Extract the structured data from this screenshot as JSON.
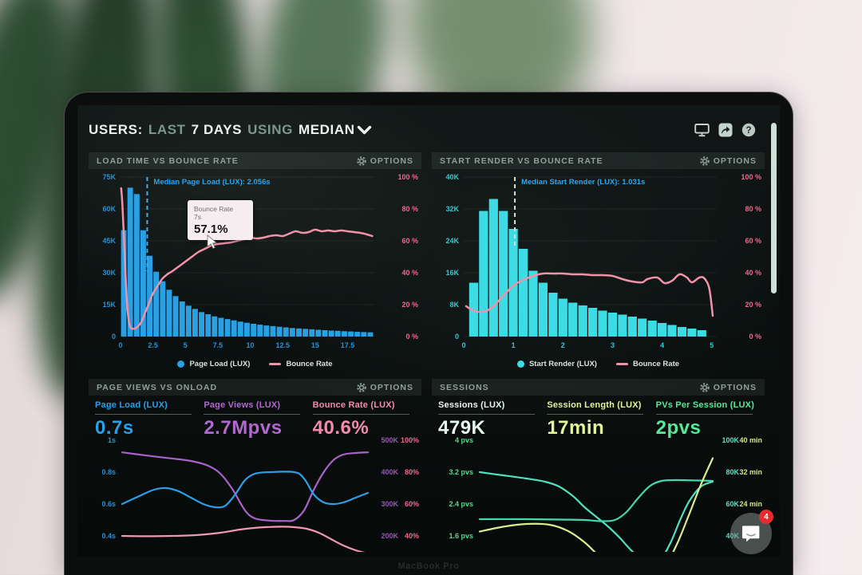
{
  "device": {
    "brand_label": "MacBook Pro"
  },
  "header": {
    "seg_users": "USERS:",
    "seg_last": "LAST",
    "seg_days": "7 DAYS",
    "seg_using": "USING",
    "seg_median": "MEDIAN"
  },
  "chat_widget": {
    "badge": "4"
  },
  "panels": {
    "load_time": {
      "title": "LOAD TIME VS BOUNCE RATE",
      "options_label": "OPTIONS",
      "tooltip": {
        "line1": "Bounce Rate",
        "line2": "7s",
        "value": "57.1%"
      },
      "legend": [
        {
          "label": "Page Load (LUX)",
          "color": "#29a0e4",
          "marker": "dot"
        },
        {
          "label": "Bounce Rate",
          "color": "#f093a9",
          "marker": "line"
        }
      ]
    },
    "start_render": {
      "title": "START RENDER VS BOUNCE RATE",
      "options_label": "OPTIONS",
      "legend": [
        {
          "label": "Start Render (LUX)",
          "color": "#3ddbe4",
          "marker": "dot"
        },
        {
          "label": "Bounce Rate",
          "color": "#f093a9",
          "marker": "line"
        }
      ]
    },
    "page_views": {
      "title": "PAGE VIEWS VS ONLOAD",
      "options_label": "OPTIONS",
      "metrics": [
        {
          "label": "Page Load (LUX)",
          "value": "0.7s",
          "color": "#2b9fe8"
        },
        {
          "label": "Page Views (LUX)",
          "value": "2.7Mpvs",
          "color": "#b168cf"
        },
        {
          "label": "Bounce Rate (LUX)",
          "value": "40.6%",
          "color": "#f48bac"
        }
      ]
    },
    "sessions": {
      "title": "SESSIONS",
      "options_label": "OPTIONS",
      "metrics": [
        {
          "label": "Sessions (LUX)",
          "value": "479K",
          "color": "#e8f7ee"
        },
        {
          "label": "Session Length (LUX)",
          "value": "17min",
          "color": "#e4f59c"
        },
        {
          "label": "PVs Per Session (LUX)",
          "value": "2pvs",
          "color": "#58e89a"
        }
      ]
    }
  },
  "chart_data": [
    {
      "id": "load_time_hist",
      "type": "bar",
      "title": "LOAD TIME VS BOUNCE RATE",
      "x": {
        "min": 0,
        "max": 19.5,
        "ticks": [
          0,
          2.5,
          5,
          7.5,
          10,
          12.5,
          15,
          17.5
        ],
        "unit": "s"
      },
      "y_left": {
        "max": 75000,
        "ticks": [
          "75K",
          "60K",
          "45K",
          "30K",
          "15K",
          "0"
        ]
      },
      "y_right": {
        "max": 100,
        "ticks": [
          "100 %",
          "80 %",
          "60 %",
          "40 %",
          "20 %",
          "0 %"
        ]
      },
      "colors": {
        "left": "#2492d8",
        "right": "#f2688c"
      },
      "bar_color": "#29a0e4",
      "bar_start": 0,
      "bar_width": 0.5,
      "bars_thousands": [
        50,
        70,
        67,
        50,
        38,
        30.5,
        26,
        22,
        19,
        16.5,
        14.5,
        13,
        11.5,
        10.5,
        9.5,
        8.8,
        8.2,
        7.6,
        7,
        6.5,
        6,
        5.6,
        5.2,
        4.9,
        4.6,
        4.3,
        4,
        3.8,
        3.6,
        3.4,
        3.2,
        3,
        2.8,
        2.7,
        2.5,
        2.4,
        2.2,
        2.1,
        2
      ],
      "median": {
        "x": 2.056,
        "label": "Median Page Load (LUX): 2.056s",
        "line_color": "#4fa8e0",
        "label_color": "#2ea3e8",
        "drop": 128
      },
      "line": {
        "name": "Bounce Rate",
        "color": "#f093a9",
        "points": [
          [
            0.05,
            93
          ],
          [
            0.15,
            82
          ],
          [
            0.3,
            55
          ],
          [
            0.45,
            28
          ],
          [
            0.6,
            12
          ],
          [
            0.75,
            6
          ],
          [
            0.9,
            5
          ],
          [
            1.1,
            5
          ],
          [
            1.3,
            6
          ],
          [
            1.6,
            9
          ],
          [
            1.9,
            15
          ],
          [
            2.2,
            21
          ],
          [
            2.5,
            27
          ],
          [
            2.8,
            31
          ],
          [
            3.2,
            36
          ],
          [
            3.6,
            39
          ],
          [
            4,
            41
          ],
          [
            4.5,
            44
          ],
          [
            5,
            47
          ],
          [
            5.5,
            50
          ],
          [
            6,
            53
          ],
          [
            6.5,
            55
          ],
          [
            7,
            57.1
          ],
          [
            7.5,
            58
          ],
          [
            8,
            58.5
          ],
          [
            8.5,
            59
          ],
          [
            9,
            60
          ],
          [
            9.5,
            61
          ],
          [
            10,
            62
          ],
          [
            10.5,
            61.5
          ],
          [
            11,
            62
          ],
          [
            11.5,
            63
          ],
          [
            12,
            63.5
          ],
          [
            12.5,
            63
          ],
          [
            13,
            64.5
          ],
          [
            13.5,
            66
          ],
          [
            14,
            65
          ],
          [
            14.5,
            65.5
          ],
          [
            15,
            67
          ],
          [
            15.5,
            66
          ],
          [
            16,
            66.5
          ],
          [
            16.5,
            66
          ],
          [
            17,
            66.5
          ],
          [
            17.5,
            66
          ],
          [
            18,
            65.5
          ],
          [
            18.5,
            65
          ],
          [
            19,
            64
          ],
          [
            19.4,
            63
          ]
        ]
      }
    },
    {
      "id": "start_render_hist",
      "type": "bar",
      "title": "START RENDER VS BOUNCE RATE",
      "x": {
        "min": 0,
        "max": 5.1,
        "ticks": [
          0,
          1,
          2,
          3,
          4,
          5
        ],
        "unit": "s"
      },
      "y_left": {
        "max": 40000,
        "ticks": [
          "40K",
          "32K",
          "24K",
          "16K",
          "8K",
          "0"
        ]
      },
      "y_right": {
        "max": 100,
        "ticks": [
          "100 %",
          "80 %",
          "60 %",
          "40 %",
          "20 %",
          "0 %"
        ]
      },
      "colors": {
        "left": "#35c8d0",
        "right": "#f2688c"
      },
      "bar_color": "#3ddbe4",
      "bar_start": 0.1,
      "bar_width": 0.2,
      "bars_thousands": [
        13.5,
        31.5,
        34.5,
        31.5,
        27,
        22,
        16.5,
        13.5,
        11,
        9.5,
        8.5,
        7.8,
        7.2,
        6.5,
        6,
        5.5,
        5,
        4.5,
        4,
        3.4,
        2.9,
        2.4,
        2,
        1.6
      ],
      "median": {
        "x": 1.031,
        "label": "Median Start Render (LUX): 1.031s",
        "line_color": "#cfe4e2",
        "label_color": "#2ea3e8",
        "drop": 100
      },
      "line": {
        "name": "Bounce Rate",
        "color": "#f093a9",
        "points": [
          [
            0.05,
            19
          ],
          [
            0.15,
            17
          ],
          [
            0.3,
            15.5
          ],
          [
            0.45,
            16
          ],
          [
            0.6,
            19
          ],
          [
            0.75,
            24
          ],
          [
            0.9,
            29
          ],
          [
            1.05,
            33
          ],
          [
            1.2,
            35.5
          ],
          [
            1.4,
            38
          ],
          [
            1.6,
            39.5
          ],
          [
            1.8,
            39.5
          ],
          [
            2,
            39.5
          ],
          [
            2.2,
            39
          ],
          [
            2.4,
            39
          ],
          [
            2.6,
            38.5
          ],
          [
            2.8,
            38.5
          ],
          [
            3,
            38
          ],
          [
            3.2,
            36
          ],
          [
            3.4,
            34.5
          ],
          [
            3.6,
            34
          ],
          [
            3.7,
            36
          ],
          [
            3.9,
            37
          ],
          [
            4.05,
            33.5
          ],
          [
            4.2,
            35
          ],
          [
            4.35,
            39
          ],
          [
            4.5,
            37
          ],
          [
            4.6,
            34
          ],
          [
            4.75,
            37
          ],
          [
            4.85,
            36.5
          ],
          [
            4.95,
            30
          ],
          [
            5.02,
            13
          ]
        ]
      }
    },
    {
      "id": "pageviews_lines",
      "type": "line",
      "title": "PAGE VIEWS VS ONLOAD",
      "x_axis": "time (unlabeled)",
      "rows": {
        "left": [
          "1s",
          "0.8s",
          "0.6s",
          "0.4s"
        ],
        "right1": [
          "500K",
          "400K",
          "300K",
          "200K"
        ],
        "right2": [
          "100%",
          "80%",
          "60%",
          "40%"
        ]
      },
      "colors": {
        "left": "#2492d8",
        "right1": "#9a55b8",
        "right2": "#f2688c"
      },
      "series": [
        {
          "name": "Page Views (LUX)",
          "unit": "K pvs",
          "color": "#a863c8",
          "axis_top": 500,
          "axis_step": 100,
          "points": [
            [
              0,
              462
            ],
            [
              0.1,
              452
            ],
            [
              0.2,
              443
            ],
            [
              0.28,
              435
            ],
            [
              0.35,
              420
            ],
            [
              0.4,
              395
            ],
            [
              0.45,
              345
            ],
            [
              0.5,
              280
            ],
            [
              0.54,
              255
            ],
            [
              0.6,
              248
            ],
            [
              0.66,
              247
            ],
            [
              0.7,
              250
            ],
            [
              0.74,
              280
            ],
            [
              0.78,
              345
            ],
            [
              0.82,
              400
            ],
            [
              0.86,
              438
            ],
            [
              0.9,
              455
            ],
            [
              0.95,
              460
            ],
            [
              1,
              462
            ]
          ]
        },
        {
          "name": "Page Load (LUX)",
          "unit": "s",
          "color": "#2b9fe8",
          "axis_top": 1.0,
          "axis_step": 0.2,
          "points": [
            [
              0,
              0.6
            ],
            [
              0.07,
              0.65
            ],
            [
              0.13,
              0.69
            ],
            [
              0.18,
              0.7
            ],
            [
              0.23,
              0.68
            ],
            [
              0.28,
              0.64
            ],
            [
              0.33,
              0.6
            ],
            [
              0.38,
              0.58
            ],
            [
              0.42,
              0.59
            ],
            [
              0.46,
              0.66
            ],
            [
              0.5,
              0.75
            ],
            [
              0.54,
              0.79
            ],
            [
              0.6,
              0.8
            ],
            [
              0.7,
              0.8
            ],
            [
              0.74,
              0.76
            ],
            [
              0.78,
              0.66
            ],
            [
              0.82,
              0.61
            ],
            [
              0.86,
              0.6
            ],
            [
              0.9,
              0.61
            ],
            [
              0.95,
              0.64
            ],
            [
              1,
              0.67
            ]
          ]
        },
        {
          "name": "Bounce Rate (LUX)",
          "unit": "%",
          "color": "#ef9ab0",
          "axis_top": 100,
          "axis_step": 20,
          "points": [
            [
              0,
              40
            ],
            [
              0.1,
              39.8
            ],
            [
              0.2,
              40
            ],
            [
              0.3,
              40.5
            ],
            [
              0.4,
              42
            ],
            [
              0.48,
              44
            ],
            [
              0.55,
              45.2
            ],
            [
              0.6,
              45.6
            ],
            [
              0.65,
              45.8
            ],
            [
              0.7,
              45.5
            ],
            [
              0.75,
              44.5
            ],
            [
              0.8,
              42
            ],
            [
              0.85,
              38
            ],
            [
              0.9,
              34
            ],
            [
              0.95,
              31
            ],
            [
              1,
              29
            ]
          ]
        }
      ]
    },
    {
      "id": "sessions_lines",
      "type": "line",
      "title": "SESSIONS",
      "x_axis": "time (unlabeled)",
      "rows": {
        "left": [
          "4 pvs",
          "3.2 pvs",
          "2.4 pvs",
          "1.6 pvs"
        ],
        "right1": [
          "100K",
          "80K",
          "60K",
          "40K"
        ],
        "right2": [
          "40 min",
          "32 min",
          "24 min",
          ""
        ]
      },
      "colors": {
        "left": "#56d88a",
        "right1": "#63dcc2",
        "right2": "#cfe88a"
      },
      "series": [
        {
          "name": "Sessions (LUX)",
          "unit": "K",
          "color": "#52e0bc",
          "axis_top": 100,
          "axis_step": 20,
          "points": [
            [
              0,
              80
            ],
            [
              0.1,
              78
            ],
            [
              0.2,
              76
            ],
            [
              0.28,
              74
            ],
            [
              0.34,
              71
            ],
            [
              0.4,
              65
            ],
            [
              0.45,
              58
            ],
            [
              0.5,
              52
            ],
            [
              0.55,
              46
            ],
            [
              0.6,
              39
            ],
            [
              0.65,
              31
            ],
            [
              0.7,
              25
            ],
            [
              0.74,
              23
            ],
            [
              0.78,
              26
            ],
            [
              0.82,
              36
            ],
            [
              0.86,
              50
            ],
            [
              0.9,
              62
            ],
            [
              0.95,
              71
            ],
            [
              1,
              74
            ]
          ]
        },
        {
          "name": "PVs Per Session (LUX)",
          "unit": "pvs",
          "color": "#45d8ae",
          "axis_top": 4,
          "axis_step": 0.8,
          "points": [
            [
              0,
              2.02
            ],
            [
              0.2,
              2.02
            ],
            [
              0.35,
              2.01
            ],
            [
              0.45,
              2.0
            ],
            [
              0.52,
              1.97
            ],
            [
              0.58,
              2.0
            ],
            [
              0.63,
              2.2
            ],
            [
              0.68,
              2.55
            ],
            [
              0.73,
              2.85
            ],
            [
              0.78,
              2.98
            ],
            [
              0.85,
              3.0
            ],
            [
              1,
              2.98
            ]
          ]
        },
        {
          "name": "Session Length (LUX)",
          "unit": "min",
          "color": "#d7ee8e",
          "axis_top": 40,
          "axis_step": 8,
          "points": [
            [
              0,
              17.1
            ],
            [
              0.1,
              18.3
            ],
            [
              0.2,
              19.0
            ],
            [
              0.3,
              18.8
            ],
            [
              0.38,
              17.2
            ],
            [
              0.45,
              14.4
            ],
            [
              0.5,
              11.6
            ],
            [
              0.55,
              8.8
            ],
            [
              0.6,
              6.4
            ],
            [
              0.68,
              4.8
            ],
            [
              0.75,
              5.6
            ],
            [
              0.8,
              8.8
            ],
            [
              0.85,
              14.4
            ],
            [
              0.9,
              21.6
            ],
            [
              0.95,
              29
            ],
            [
              1,
              35.5
            ]
          ]
        }
      ]
    }
  ]
}
